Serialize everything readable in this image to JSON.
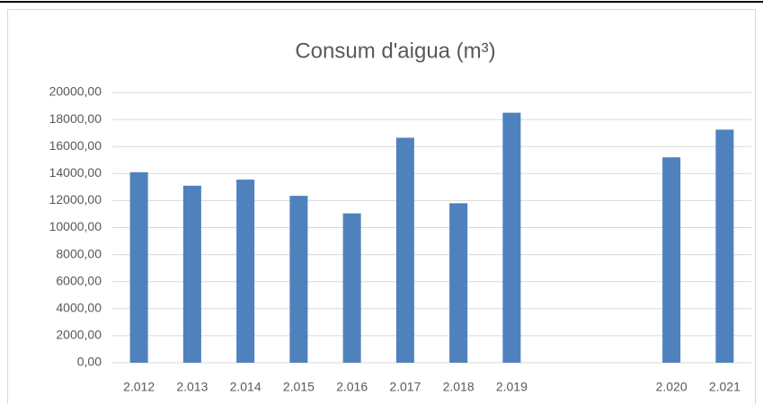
{
  "chart_data": {
    "type": "bar",
    "title": "Consum d'aigua (m³)",
    "categories": [
      "2.012",
      "2.013",
      "2.014",
      "2.015",
      "2.016",
      "2.017",
      "2.018",
      "2.019",
      null,
      null,
      "2.020",
      "2.021"
    ],
    "values": [
      14100,
      13100,
      13550,
      12350,
      11050,
      16650,
      11800,
      18500,
      null,
      null,
      15200,
      17250
    ],
    "color": "#4f81bd",
    "ylim": [
      0,
      20000
    ],
    "yticks": [
      {
        "value": 0,
        "label": "0,00"
      },
      {
        "value": 2000,
        "label": "2000,00"
      },
      {
        "value": 4000,
        "label": "4000,00"
      },
      {
        "value": 6000,
        "label": "6000,00"
      },
      {
        "value": 8000,
        "label": "8000,00"
      },
      {
        "value": 10000,
        "label": "10000,00"
      },
      {
        "value": 12000,
        "label": "12000,00"
      },
      {
        "value": 14000,
        "label": "14000,00"
      },
      {
        "value": 16000,
        "label": "16000,00"
      },
      {
        "value": 18000,
        "label": "18000,00"
      },
      {
        "value": 20000,
        "label": "20000,00"
      }
    ],
    "grid": true
  }
}
